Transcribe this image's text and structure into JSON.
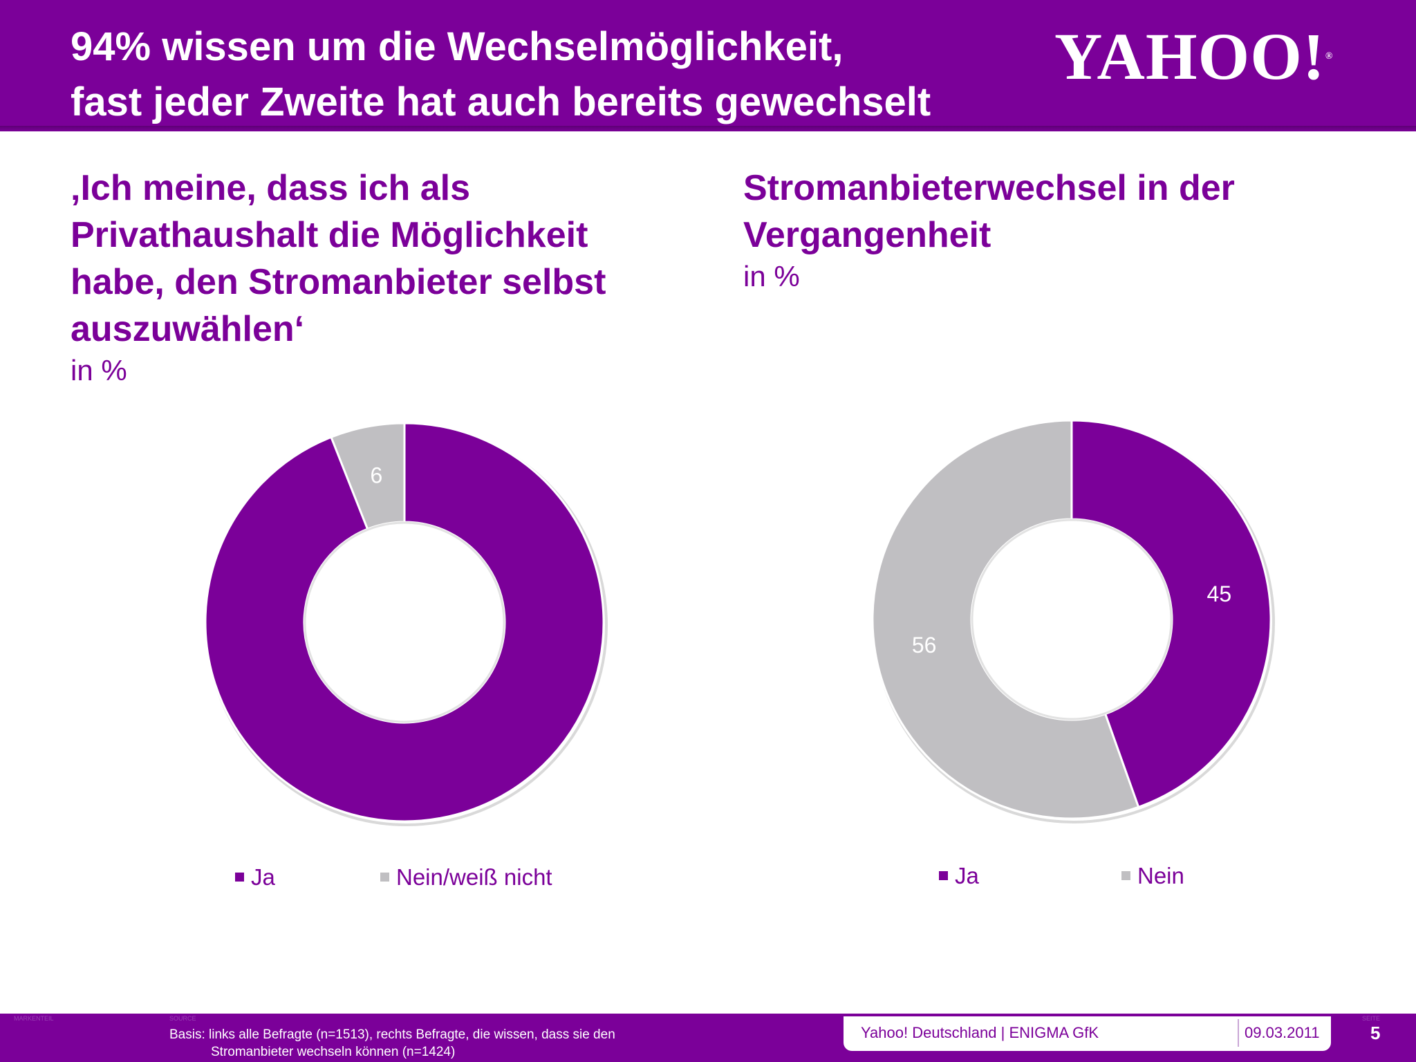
{
  "header": {
    "title_line1": "94% wissen um die Wechselmöglichkeit,",
    "title_line2": "fast jeder Zweite hat auch bereits gewechselt",
    "logo": "YAHOO!",
    "background": "#7b0099"
  },
  "left_panel": {
    "title_lines": [
      "‚Ich meine, dass ich als",
      "Privathaushalt die Möglichkeit",
      "habe, den Stromanbieter selbst",
      "auszuwählen‘"
    ],
    "unit": "in %"
  },
  "right_panel": {
    "title_lines": [
      "Stromanbieterwechsel in der",
      "Vergangenheit"
    ],
    "unit": "in %"
  },
  "chart_data": [
    {
      "type": "pie",
      "title": "‚Ich meine, dass ich als Privathaushalt die Möglichkeit habe, den Stromanbieter selbst auszuwählen‘",
      "unit": "in %",
      "donut": true,
      "categories": [
        "Ja",
        "Nein/weiß nicht"
      ],
      "values": [
        94,
        6
      ],
      "colors": [
        "#7b0099",
        "#c0bfc2"
      ],
      "legend_position": "bottom"
    },
    {
      "type": "pie",
      "title": "Stromanbieterwechsel in der Vergangenheit",
      "unit": "in %",
      "donut": true,
      "categories": [
        "Ja",
        "Nein"
      ],
      "values": [
        45,
        56
      ],
      "colors": [
        "#7b0099",
        "#c0bfc2"
      ],
      "legend_position": "bottom"
    }
  ],
  "footer": {
    "label_left_tiny": "MARKENTEIL",
    "label_source_tiny": "SOURCE",
    "label_right_tiny": "SEITE",
    "basis_line1": "Basis: links alle Befragte (n=1513), rechts Befragte, die wissen, dass sie den",
    "basis_line2": "Stromanbieter wechseln können (n=1424)",
    "source": "Yahoo! Deutschland | ENIGMA GfK",
    "date": "09.03.2011",
    "page": "5"
  }
}
